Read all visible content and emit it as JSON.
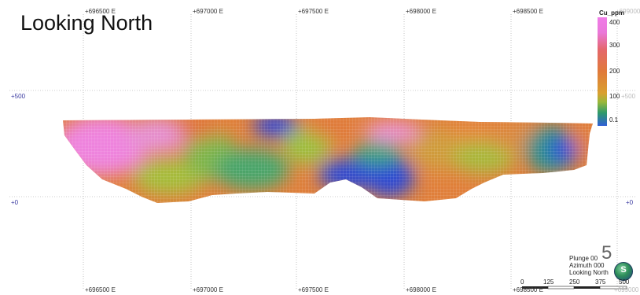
{
  "title": "Looking North",
  "top_axis_labels": [
    "+696500 E",
    "+697000 E",
    "+697500 E",
    "+698000 E",
    "+698500 E",
    "+699000"
  ],
  "bottom_axis_labels": [
    "+696500 E",
    "+697000 E",
    "+697500 E",
    "+698000 E",
    "+698500 E",
    "+699000"
  ],
  "left_axis_labels": [
    "+500",
    "+0"
  ],
  "right_axis_labels": [
    "+500",
    "+0"
  ],
  "legend": {
    "title": "Cu_ppm",
    "ticks": [
      "400",
      "300",
      "200",
      "100",
      "0.1"
    ],
    "colors": [
      "#f07ce8",
      "#e4676a",
      "#d9a030",
      "#9ab83a",
      "#2f5fd8"
    ]
  },
  "view_info": {
    "plunge": "Plunge 00",
    "azimuth": "Azimuth 000",
    "looking": "Looking North"
  },
  "page_number": "5",
  "compass_letter": "S",
  "scale_labels": [
    "0",
    "125",
    "250",
    "375",
    "500"
  ]
}
